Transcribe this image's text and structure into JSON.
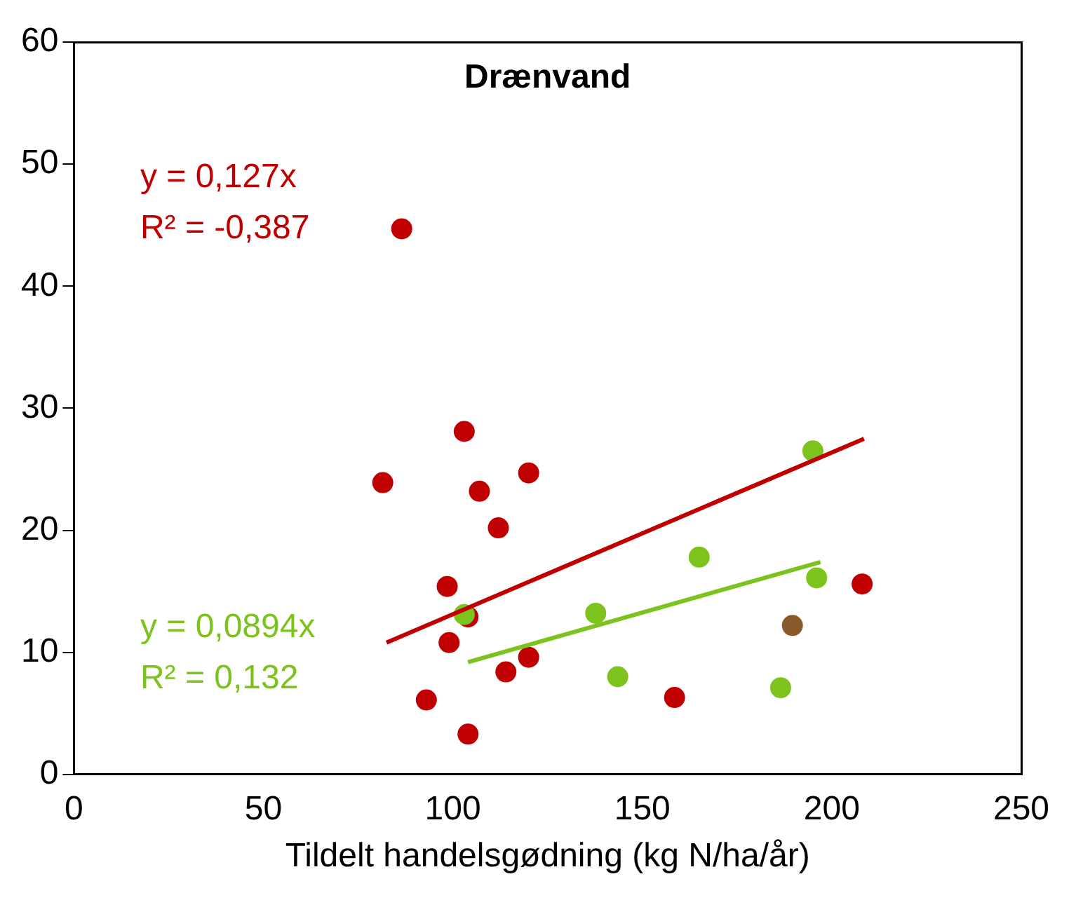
{
  "chart_data": {
    "type": "scatter",
    "title": "Drænvand",
    "xlabel": "Tildelt handelsgødning (kg N/ha/år)",
    "series": [
      {
        "color": "#c00000",
        "x": [
          81.5,
          86.5,
          103,
          107,
          120,
          112,
          98.5,
          104,
          99,
          93,
          104,
          114,
          120,
          158.5,
          208
        ],
        "values": [
          23.9,
          44.7,
          28.1,
          23.2,
          24.7,
          20.2,
          15.4,
          12.9,
          10.8,
          6.1,
          3.3,
          8.4,
          9.6,
          6.3,
          15.6
        ]
      },
      {
        "color": "#7dc31e",
        "x": [
          103,
          137.7,
          143.5,
          165,
          195,
          196,
          186.5
        ],
        "values": [
          13.1,
          13.2,
          8.0,
          17.8,
          26.5,
          16.1,
          7.1
        ]
      },
      {
        "color": "#8b5a2b",
        "x": [
          189.6
        ],
        "values": [
          12.2
        ]
      },
      {
        "type": "line",
        "marker": "none",
        "color": "#c00000",
        "x": [
          82.5,
          208.5
        ],
        "values": [
          10.8,
          27.5
        ]
      },
      {
        "type": "line",
        "marker": "none",
        "color": "#7dc31e",
        "x": [
          104,
          197
        ],
        "values": [
          9.2,
          17.4
        ]
      }
    ],
    "annotations": [
      "y = 0,127x",
      "R² = -0,387",
      "y = 0,0894x",
      "R² = 0,132"
    ],
    "xlim": [
      0,
      250
    ],
    "xticks": [
      0,
      50,
      100,
      150,
      200,
      250
    ],
    "ylim": [
      0,
      60
    ],
    "yticks": [
      0,
      10,
      20,
      30,
      40,
      50,
      60
    ],
    "grid": false,
    "legend": false,
    "marker": "circle"
  }
}
